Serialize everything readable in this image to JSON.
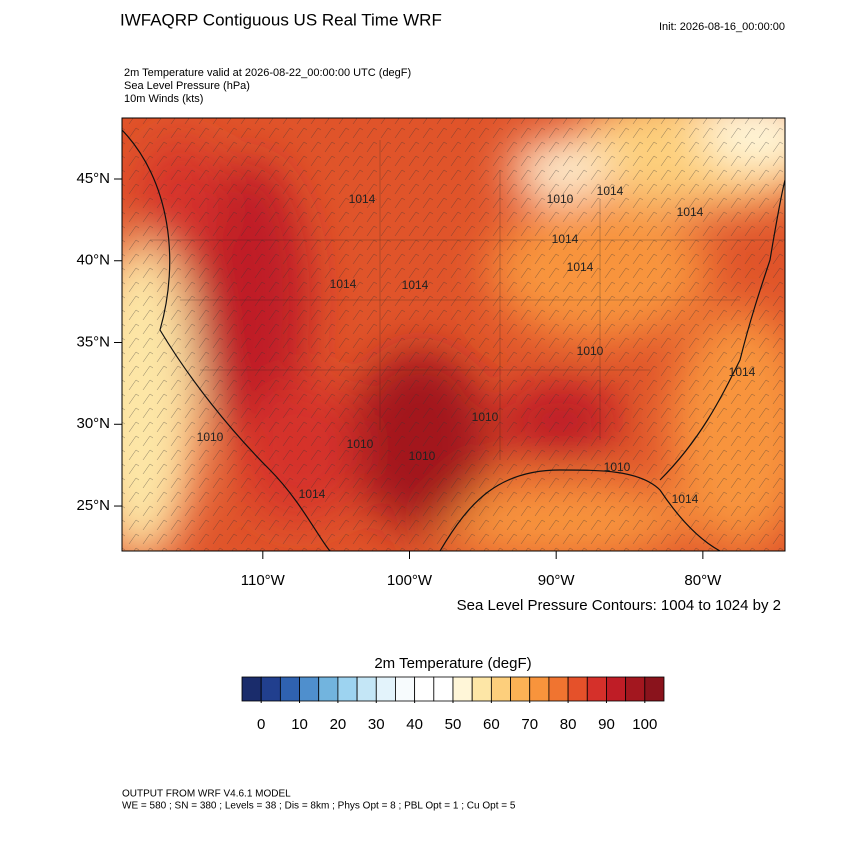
{
  "header": {
    "title": "IWFAQRP Contiguous US Real Time WRF",
    "init": "Init: 2026-08-16_00:00:00"
  },
  "fields": [
    "2m Temperature valid at 2026-08-22_00:00:00 UTC   (degF)",
    "Sea Level Pressure   (hPa)",
    "10m Winds   (kts)"
  ],
  "map": {
    "xlim": [
      -119.6,
      -74.4
    ],
    "ylim": [
      22.25,
      48.73
    ],
    "xticks": [
      {
        "value": -110,
        "label": "110°W"
      },
      {
        "value": -100,
        "label": "100°W"
      },
      {
        "value": -90,
        "label": "90°W"
      },
      {
        "value": -80,
        "label": "80°W"
      }
    ],
    "yticks": [
      {
        "value": 25,
        "label": "25°N"
      },
      {
        "value": 30,
        "label": "30°N"
      },
      {
        "value": 35,
        "label": "35°N"
      },
      {
        "value": 40,
        "label": "40°N"
      },
      {
        "value": 45,
        "label": "45°N"
      }
    ],
    "contour_labels": [
      1014,
      1010,
      1014,
      1014,
      1014,
      1014,
      1014,
      1014,
      1010,
      1014,
      1010,
      1010,
      1010,
      1010,
      1014,
      1010,
      1014
    ]
  },
  "contour_note": "Sea Level Pressure Contours: 1004 to 1024 by 2",
  "colorbar": {
    "title": "2m Temperature  (degF)",
    "xlim": [
      -5,
      105
    ],
    "ticks": [
      0,
      10,
      20,
      30,
      40,
      50,
      60,
      70,
      80,
      90,
      100
    ],
    "colors": [
      "#1a2c6b",
      "#213f8e",
      "#2f62b0",
      "#4f8fcd",
      "#72b4de",
      "#9dd3f0",
      "#c4e6f6",
      "#e3f3fb",
      "#f7fbfd",
      "#ffffff",
      "#ffffff",
      "#fff6d8",
      "#fde6a6",
      "#fdcf7c",
      "#fbb255",
      "#f8943c",
      "#f07430",
      "#e5512a",
      "#d5302a",
      "#bf1d26",
      "#a3171f",
      "#8a131c"
    ]
  },
  "footer": [
    "OUTPUT FROM WRF V4.6.1 MODEL",
    "WE = 580 ; SN = 380 ; Levels = 38 ; Dis = 8km ; Phys Opt = 8 ; PBL Opt = 1 ; Cu Opt = 5"
  ]
}
